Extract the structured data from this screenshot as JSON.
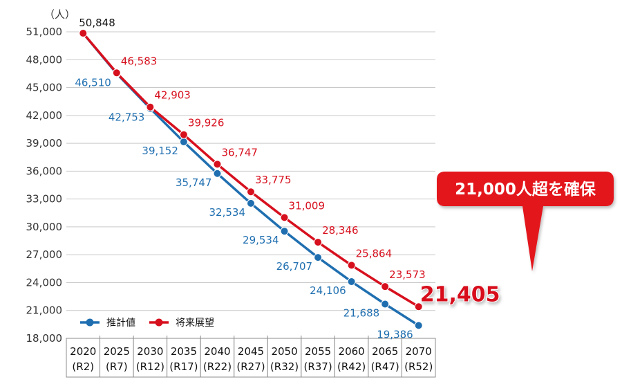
{
  "chart_data": {
    "type": "line",
    "unit_label": "（人）",
    "categories": [
      [
        "2020",
        "(R2)"
      ],
      [
        "2025",
        "(R7)"
      ],
      [
        "2030",
        "(R12)"
      ],
      [
        "2035",
        "(R17)"
      ],
      [
        "2040",
        "(R22)"
      ],
      [
        "2045",
        "(R27)"
      ],
      [
        "2050",
        "(R32)"
      ],
      [
        "2055",
        "(R37)"
      ],
      [
        "2060",
        "(R42)"
      ],
      [
        "2065",
        "(R47)"
      ],
      [
        "2070",
        "(R52)"
      ]
    ],
    "ylim": [
      18000,
      51000
    ],
    "yticks": [
      {
        "value": 18000,
        "label": "18,000"
      },
      {
        "value": 21000,
        "label": "21,000"
      },
      {
        "value": 24000,
        "label": "24,000"
      },
      {
        "value": 27000,
        "label": "27,000"
      },
      {
        "value": 30000,
        "label": "30,000"
      },
      {
        "value": 33000,
        "label": "33,000"
      },
      {
        "value": 36000,
        "label": "36,000"
      },
      {
        "value": 39000,
        "label": "39,000"
      },
      {
        "value": 42000,
        "label": "42,000"
      },
      {
        "value": 45000,
        "label": "45,000"
      },
      {
        "value": 48000,
        "label": "48,000"
      },
      {
        "value": 51000,
        "label": "51,000"
      }
    ],
    "grid": true,
    "legend_position": "bottom-left",
    "series": [
      {
        "name": "推計値",
        "color": "#1f6fb0",
        "values": [
          50848,
          46510,
          42753,
          39152,
          35747,
          32534,
          29534,
          26707,
          24106,
          21688,
          19386
        ],
        "labels": [
          "",
          "46,510",
          "42,753",
          "39,152",
          "35,747",
          "32,534",
          "29,534",
          "26,707",
          "24,106",
          "21,688",
          "19,386"
        ]
      },
      {
        "name": "将来展望",
        "color": "#d7101e",
        "values": [
          50848,
          46583,
          42903,
          39926,
          36747,
          33775,
          31009,
          28346,
          25864,
          23573,
          21405
        ],
        "labels": [
          "50,848",
          "46,583",
          "42,903",
          "39,926",
          "36,747",
          "33,775",
          "31,009",
          "28,346",
          "25,864",
          "23,573",
          "21,405"
        ]
      }
    ],
    "callout": {
      "text": "21,000人超を確保",
      "color": "#e3131b"
    }
  }
}
